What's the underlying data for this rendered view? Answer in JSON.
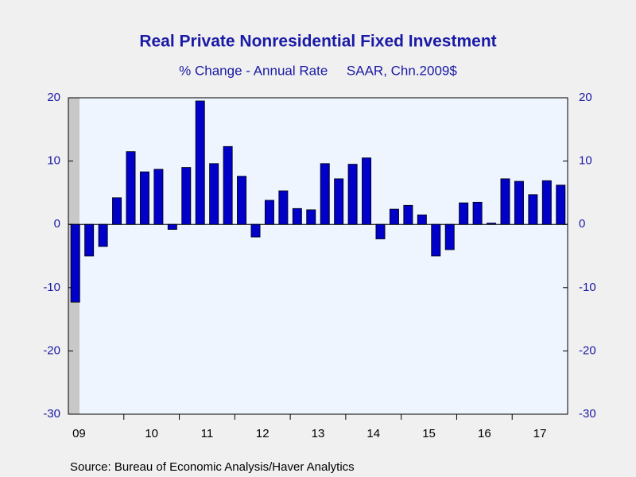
{
  "chart_data": {
    "type": "bar",
    "title": "Real Private Nonresidential Fixed Investment",
    "subtitle": "% Change - Annual Rate     SAAR, Chn.2009$",
    "source": "Source:  Bureau of Economic Analysis/Haver Analytics",
    "categories": [
      "09",
      null,
      null,
      null,
      null,
      "10",
      null,
      null,
      null,
      "11",
      null,
      null,
      null,
      "12",
      null,
      null,
      null,
      "13",
      null,
      null,
      null,
      "14",
      null,
      null,
      null,
      "15",
      null,
      null,
      null,
      "16",
      null,
      null,
      null,
      "17",
      null,
      null
    ],
    "values": [
      -12.3,
      -5,
      -3.5,
      4.2,
      11.5,
      8.3,
      8.7,
      -0.8,
      9,
      19.5,
      9.6,
      12.3,
      7.6,
      -2,
      3.8,
      5.3,
      2.5,
      2.3,
      9.6,
      7.2,
      9.5,
      10.5,
      -2.3,
      2.4,
      3,
      1.5,
      -5,
      -4,
      3.4,
      3.5,
      0.2,
      7.2,
      6.8,
      4.7,
      6.9,
      6.2
    ],
    "color": "#0000c8",
    "ylim": [
      -30,
      20
    ],
    "yticks": [
      -30,
      -20,
      -10,
      0,
      10,
      20
    ],
    "y2lim": [
      -30,
      20
    ],
    "y2ticks": [
      -30,
      -20,
      -10,
      0,
      10,
      20
    ],
    "grid": false
  }
}
